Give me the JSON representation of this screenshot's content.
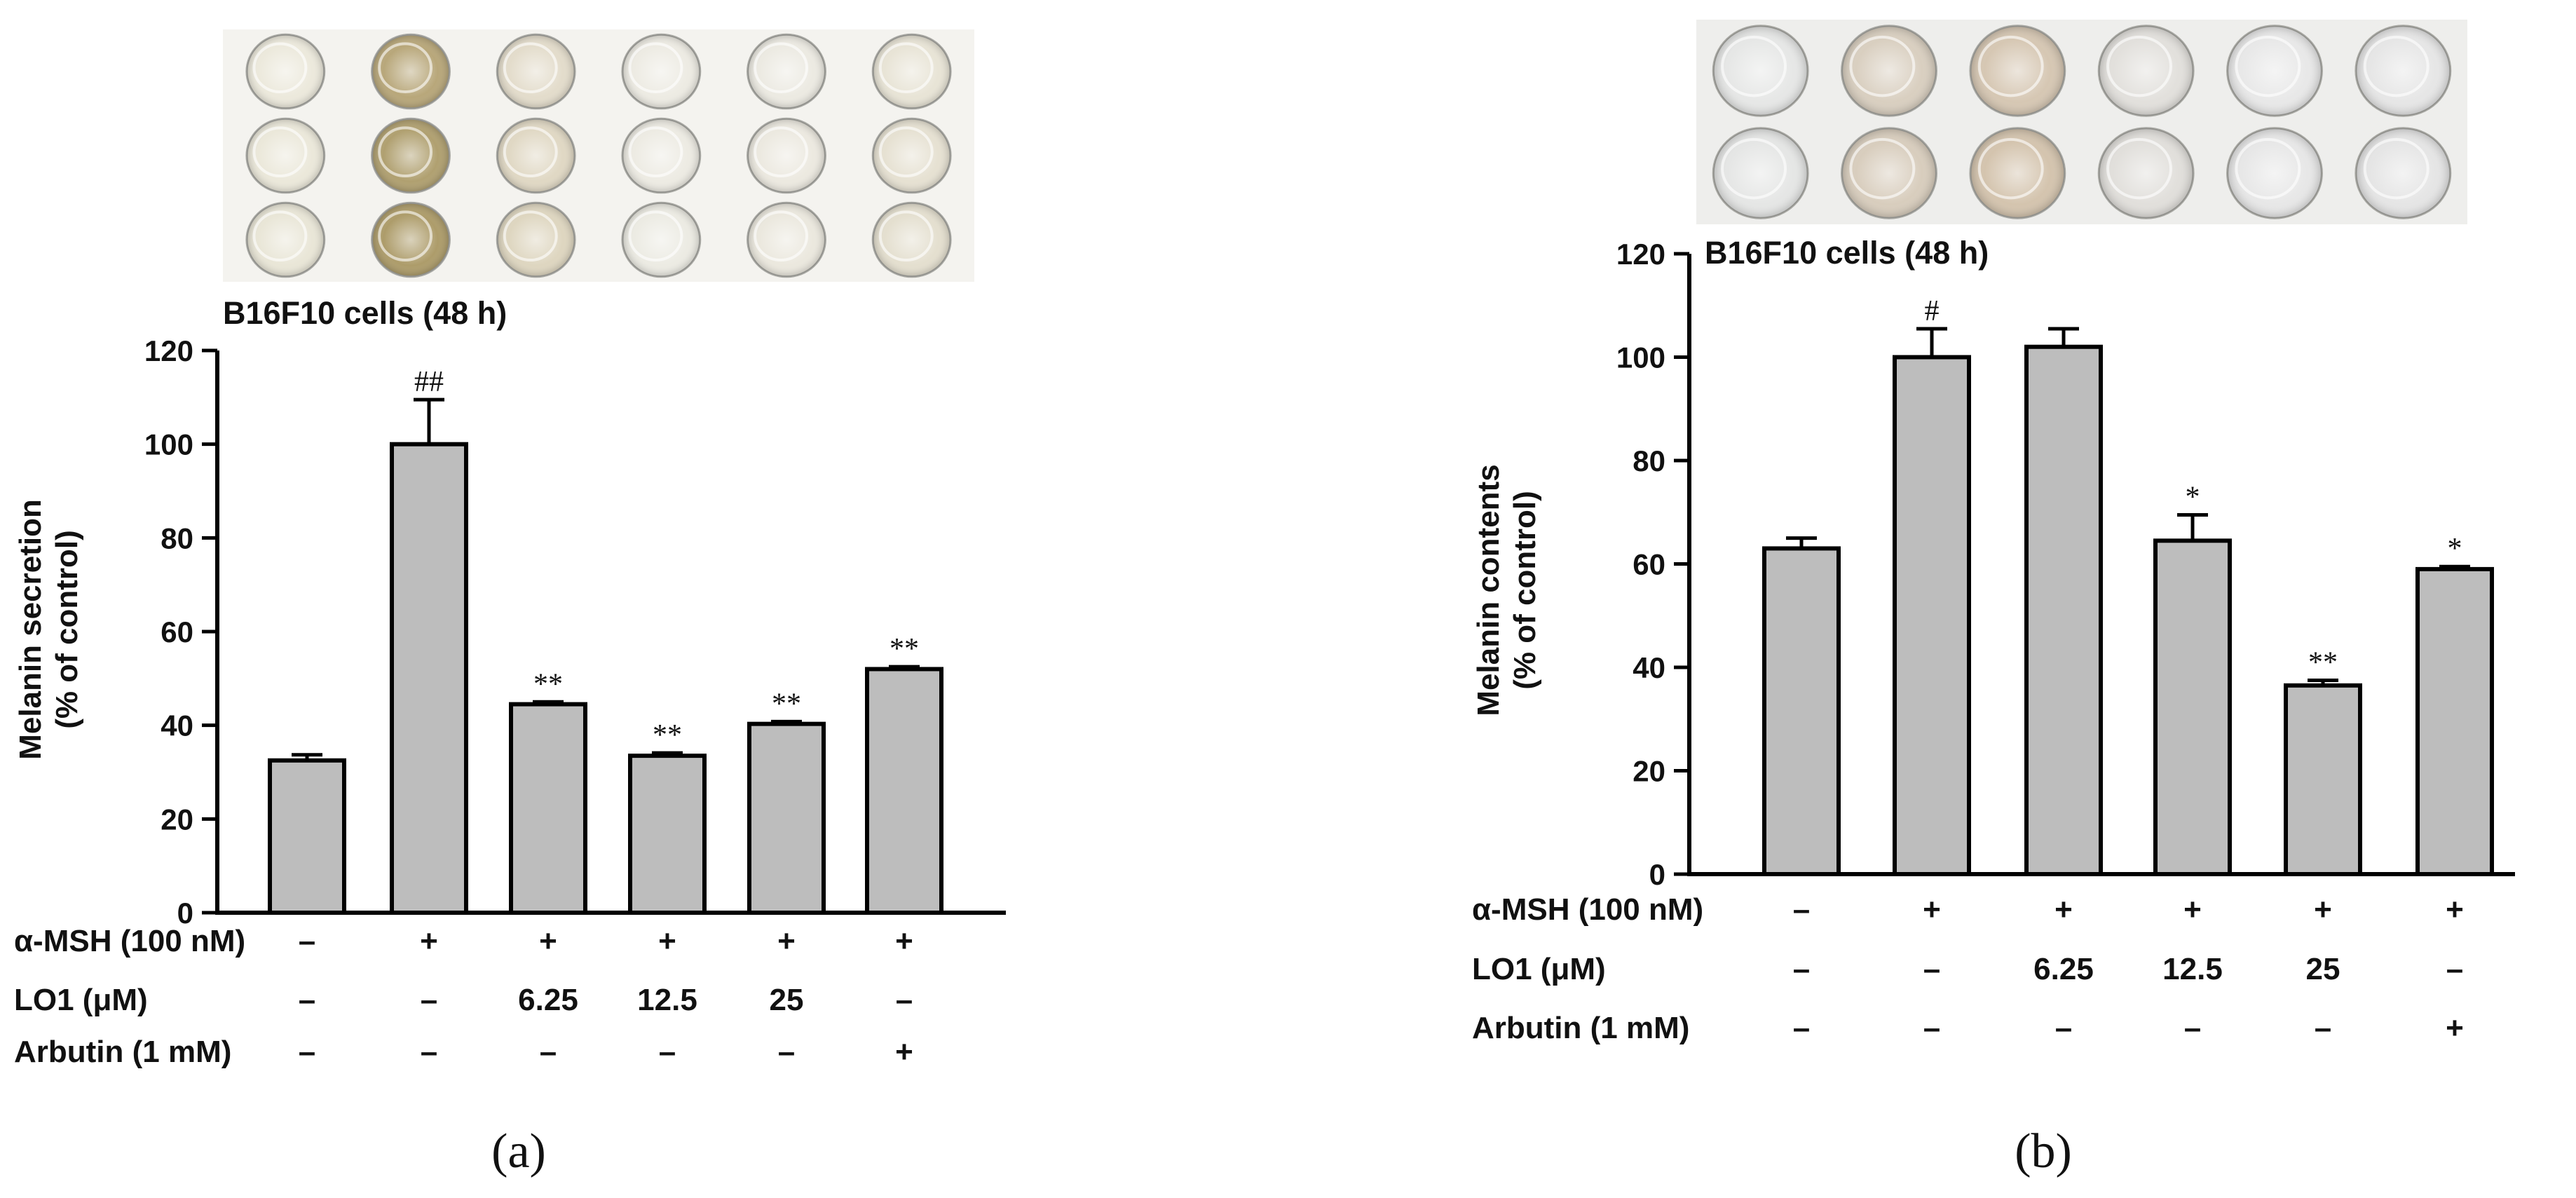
{
  "panels": [
    {
      "label": "(a)",
      "photo_well_colors": [
        [
          "#ece9dc",
          "#b8a77a",
          "#e3dccb",
          "#edebe3",
          "#eceae2",
          "#e8e4d6"
        ],
        [
          "#ebe8da",
          "#b0a070",
          "#e0d8c4",
          "#edebe3",
          "#ece9e0",
          "#e6e1d2"
        ],
        [
          "#e9e6d7",
          "#ad9c6a",
          "#ded6c0",
          "#ecebe3",
          "#ebe8de",
          "#e4dfcf"
        ]
      ],
      "photo_bg": "#f4f3ef",
      "chart_data": {
        "type": "bar",
        "title": "B16F10 cells (48 h)",
        "ylabel_line1": "Melanin secretion",
        "ylabel_line2": "(% of control)",
        "ylim": [
          0,
          120
        ],
        "yticks": [
          "0",
          "20",
          "40",
          "60",
          "80",
          "100",
          "120"
        ],
        "values": [
          32.5,
          100,
          44.5,
          33.5,
          40.3,
          52
        ],
        "errors": [
          1.2,
          9.5,
          0.5,
          0.6,
          0.5,
          0.5
        ],
        "significance": [
          "",
          "##",
          "**",
          "**",
          "**",
          "**"
        ],
        "bar_color": "#bdbdbd",
        "conditions": [
          {
            "label": "α-MSH (100 nM)",
            "values": [
              "–",
              "+",
              "+",
              "+",
              "+",
              "+"
            ]
          },
          {
            "label": "LO1 (μM)",
            "values": [
              "–",
              "–",
              "6.25",
              "12.5",
              "25",
              "–"
            ]
          },
          {
            "label": "Arbutin (1 mM)",
            "values": [
              "–",
              "–",
              "–",
              "–",
              "–",
              "+"
            ]
          }
        ]
      }
    },
    {
      "label": "(b)",
      "photo_well_colors": [
        [
          "#e6e7e6",
          "#d9cfc0",
          "#d6c7b3",
          "#e2e0dc",
          "#e8e8e8",
          "#e6e6e6"
        ],
        [
          "#e5e6e5",
          "#d8cdbd",
          "#d4c4ae",
          "#e1dfdb",
          "#e7e7e7",
          "#e5e5e5"
        ]
      ],
      "photo_bg": "#eeeeec",
      "chart_data": {
        "type": "bar",
        "title": "B16F10 cells (48 h)",
        "ylabel_line1": "Melanin contents",
        "ylabel_line2": "(% of control)",
        "ylim": [
          0,
          120
        ],
        "yticks": [
          "0",
          "20",
          "40",
          "60",
          "80",
          "100",
          "120"
        ],
        "values": [
          63,
          100,
          102,
          64.5,
          36.5,
          59
        ],
        "errors": [
          2,
          5.5,
          3.5,
          5,
          1,
          0.5
        ],
        "significance": [
          "",
          "#",
          "",
          "*",
          "**",
          "*"
        ],
        "bar_color": "#bdbdbd",
        "conditions": [
          {
            "label": "α-MSH (100 nM)",
            "values": [
              "–",
              "+",
              "+",
              "+",
              "+",
              "+"
            ]
          },
          {
            "label": "LO1 (μM)",
            "values": [
              "–",
              "–",
              "6.25",
              "12.5",
              "25",
              "–"
            ]
          },
          {
            "label": "Arbutin (1 mM)",
            "values": [
              "–",
              "–",
              "–",
              "–",
              "–",
              "+"
            ]
          }
        ]
      }
    }
  ]
}
